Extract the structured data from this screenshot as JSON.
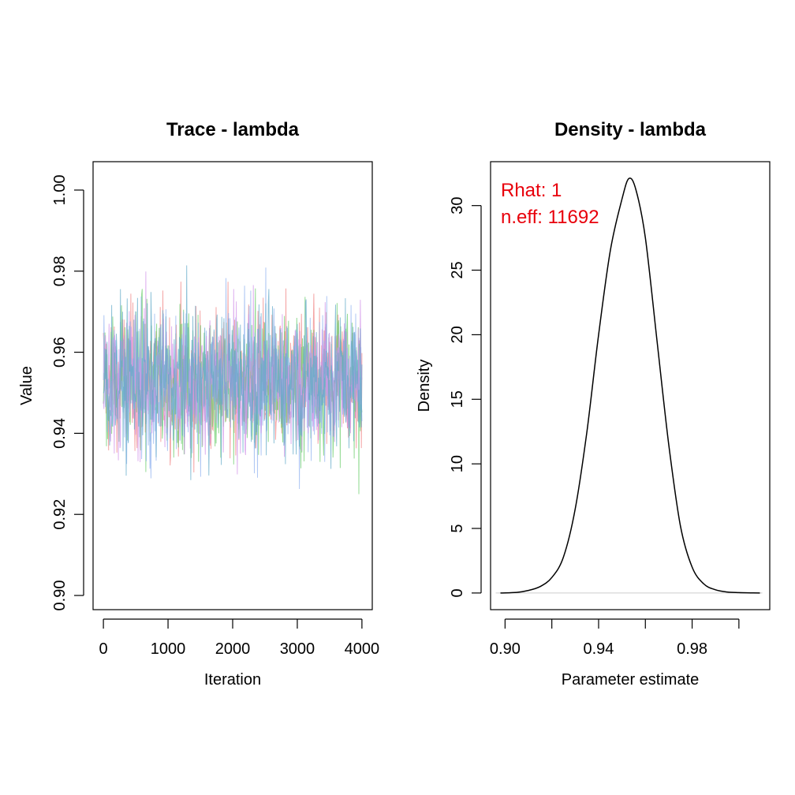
{
  "chart_data": [
    {
      "type": "line",
      "title": "Trace - lambda",
      "xlabel": "Iteration",
      "ylabel": "Value",
      "xlim": [
        0,
        4000
      ],
      "ylim": [
        0.9,
        1.0
      ],
      "xticks": [
        "0",
        "1000",
        "2000",
        "3000",
        "4000"
      ],
      "yticks": [
        "0.90",
        "0.92",
        "0.94",
        "0.96",
        "0.98",
        "1.00"
      ],
      "series": [
        {
          "color": "#f08080",
          "mean": 0.953,
          "sd": 0.0125,
          "n": 4000
        },
        {
          "color": "#66cc66",
          "mean": 0.953,
          "sd": 0.0125,
          "n": 4000
        },
        {
          "color": "#8fb0f0",
          "mean": 0.953,
          "sd": 0.0125,
          "n": 4000
        },
        {
          "color": "#d090e8",
          "mean": 0.953,
          "sd": 0.0125,
          "n": 4000
        },
        {
          "color": "#5fa8c8",
          "mean": 0.953,
          "sd": 0.0125,
          "n": 4000
        }
      ],
      "range_observed": [
        0.903,
        1.004
      ],
      "grid": false
    },
    {
      "type": "line",
      "title": "Density - lambda",
      "xlabel": "Parameter estimate",
      "ylabel": "Density",
      "xlim": [
        0.896,
        1.01
      ],
      "ylim": [
        0,
        33
      ],
      "xticks": [
        "0.90",
        "0.94",
        "0.98"
      ],
      "yticks": [
        "0",
        "5",
        "10",
        "15",
        "20",
        "25",
        "30"
      ],
      "line_color": "#000000",
      "points": [
        [
          0.898,
          0.0
        ],
        [
          0.905,
          0.05
        ],
        [
          0.91,
          0.2
        ],
        [
          0.915,
          0.5
        ],
        [
          0.92,
          1.2
        ],
        [
          0.925,
          2.8
        ],
        [
          0.93,
          6.5
        ],
        [
          0.935,
          12.5
        ],
        [
          0.94,
          20.0
        ],
        [
          0.945,
          26.5
        ],
        [
          0.95,
          30.5
        ],
        [
          0.953,
          32.1
        ],
        [
          0.956,
          31.2
        ],
        [
          0.96,
          27.5
        ],
        [
          0.965,
          19.5
        ],
        [
          0.97,
          11.5
        ],
        [
          0.975,
          5.2
        ],
        [
          0.98,
          2.0
        ],
        [
          0.985,
          0.7
        ],
        [
          0.99,
          0.25
        ],
        [
          0.995,
          0.08
        ],
        [
          1.0,
          0.03
        ],
        [
          1.005,
          0.01
        ],
        [
          1.009,
          0.0
        ]
      ],
      "annotations": [
        {
          "text": "Rhat: 1",
          "color": "#e8000b"
        },
        {
          "text": "n.eff: 11692",
          "color": "#e8000b"
        }
      ],
      "grid": false
    }
  ]
}
